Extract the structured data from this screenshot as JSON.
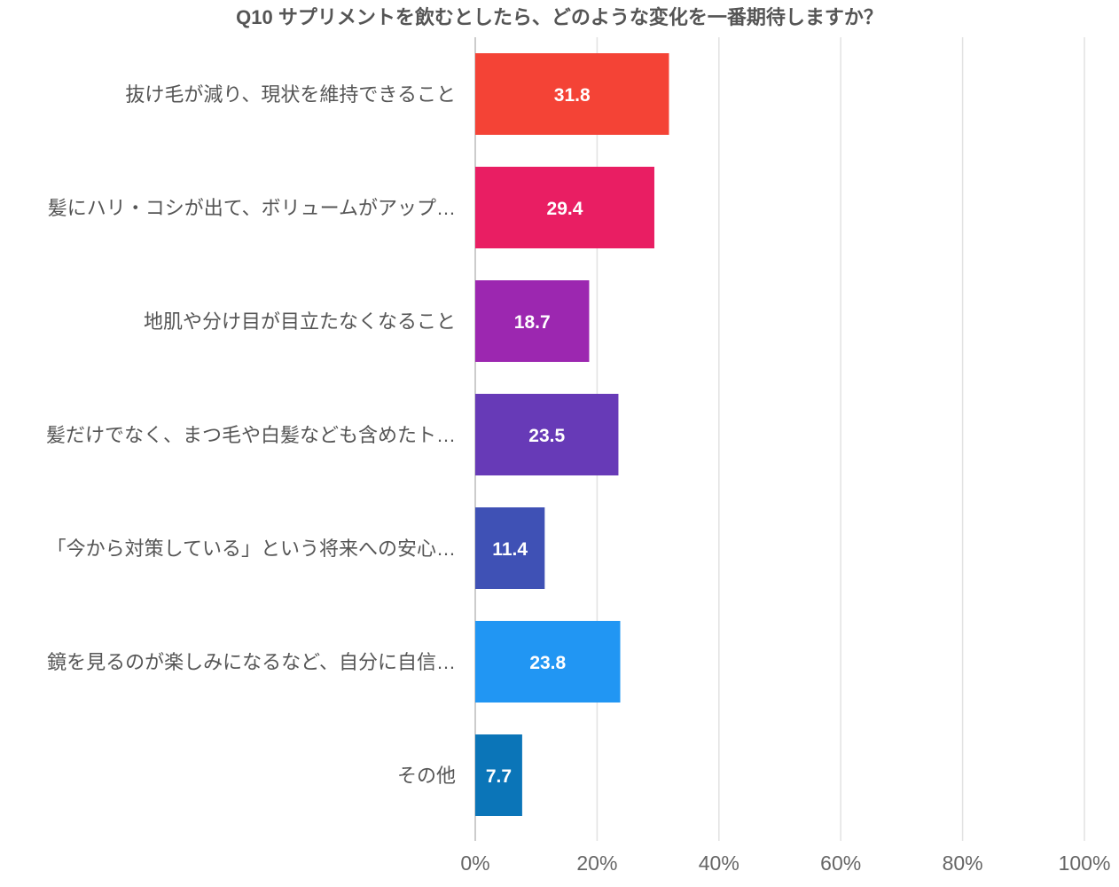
{
  "chart_data": {
    "type": "bar",
    "orientation": "horizontal",
    "title": "Q10 サプリメントを飲むとしたら、どのような変化を一番期待しますか？",
    "categories": [
      "抜け毛が減り、現状を維持できること",
      "髪にハリ・コシが出て、ボリュームがアップ…",
      "地肌や分け目が目立たなくなること",
      "髪だけでなく、まつ毛や白髪なども含めたト…",
      "「今から対策している」という将来への安心…",
      "鏡を見るのが楽しみになるなど、自分に自信…",
      "その他"
    ],
    "values": [
      31.8,
      29.4,
      18.7,
      23.5,
      11.4,
      23.8,
      7.7
    ],
    "value_labels": [
      "31.8",
      "29.4",
      "18.7",
      "23.5",
      "11.4",
      "23.8",
      "7.7"
    ],
    "colors": [
      "#f44336",
      "#e91e63",
      "#9c27b0",
      "#673ab7",
      "#3f51b5",
      "#2196f3",
      "#0b75b8"
    ],
    "xlim": [
      0,
      100
    ],
    "x_ticks": [
      0,
      20,
      40,
      60,
      80,
      100
    ],
    "x_tick_labels": [
      "0%",
      "20%",
      "40%",
      "60%",
      "80%",
      "100%"
    ],
    "grid": true,
    "xlabel": "",
    "ylabel": ""
  }
}
